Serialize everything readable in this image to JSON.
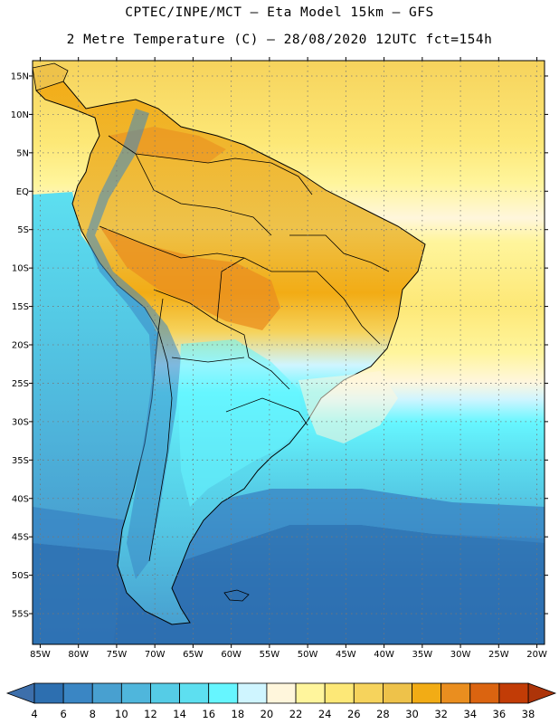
{
  "title_line_1": "CPTEC/INPE/MCT –  Eta Model 15km – GFS",
  "title_line_2": "2 Metre Temperature (C) – 28/08/2020 12UTC fct=154h",
  "map": {
    "lon_range": [
      -86,
      -19
    ],
    "lat_range": [
      -59,
      17
    ],
    "lat_ticks": [
      {
        "value": 15,
        "label": "15N"
      },
      {
        "value": 10,
        "label": "10N"
      },
      {
        "value": 5,
        "label": "5N"
      },
      {
        "value": 0,
        "label": "EQ"
      },
      {
        "value": -5,
        "label": "5S"
      },
      {
        "value": -10,
        "label": "10S"
      },
      {
        "value": -15,
        "label": "15S"
      },
      {
        "value": -20,
        "label": "20S"
      },
      {
        "value": -25,
        "label": "25S"
      },
      {
        "value": -30,
        "label": "30S"
      },
      {
        "value": -35,
        "label": "35S"
      },
      {
        "value": -40,
        "label": "40S"
      },
      {
        "value": -45,
        "label": "45S"
      },
      {
        "value": -50,
        "label": "50S"
      },
      {
        "value": -55,
        "label": "55S"
      }
    ],
    "lon_ticks": [
      {
        "value": -85,
        "label": "85W"
      },
      {
        "value": -80,
        "label": "80W"
      },
      {
        "value": -75,
        "label": "75W"
      },
      {
        "value": -70,
        "label": "70W"
      },
      {
        "value": -65,
        "label": "65W"
      },
      {
        "value": -60,
        "label": "60W"
      },
      {
        "value": -55,
        "label": "55W"
      },
      {
        "value": -50,
        "label": "50W"
      },
      {
        "value": -45,
        "label": "45W"
      },
      {
        "value": -40,
        "label": "40W"
      },
      {
        "value": -35,
        "label": "35W"
      },
      {
        "value": -30,
        "label": "30W"
      },
      {
        "value": -25,
        "label": "25W"
      },
      {
        "value": -20,
        "label": "20W"
      }
    ],
    "grid": "dotted"
  },
  "colorbar": {
    "labels": [
      "4",
      "6",
      "8",
      "10",
      "12",
      "14",
      "16",
      "18",
      "20",
      "22",
      "24",
      "26",
      "28",
      "30",
      "32",
      "34",
      "36",
      "38"
    ],
    "colors": [
      "#2d6fb0",
      "#3a86c4",
      "#48a0d0",
      "#4fb6dc",
      "#55cce6",
      "#5ddff0",
      "#66f6ff",
      "#cff5ff",
      "#fff6dc",
      "#fff59c",
      "#fde877",
      "#f6d35c",
      "#eec24a",
      "#f2ac15",
      "#ea8e1f",
      "#db6410",
      "#c23c06"
    ],
    "low_arrow_color": "#3d6fab",
    "high_arrow_color": "#ad3409"
  }
}
